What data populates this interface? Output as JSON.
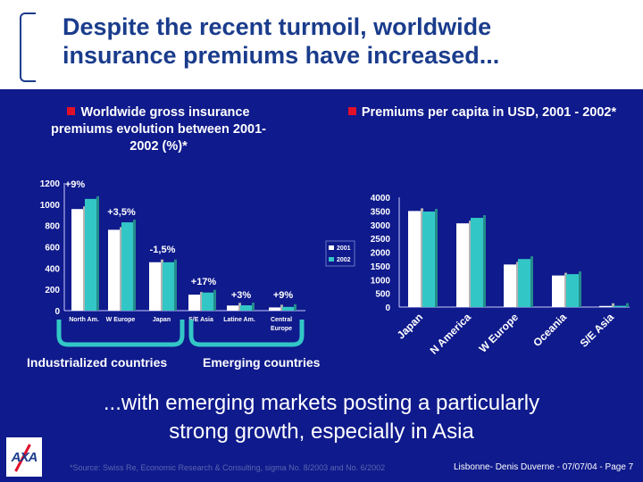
{
  "slide": {
    "title": "Despite the recent turmoil, worldwide\ninsurance premiums have increased...",
    "left_header": "Worldwide gross insurance premiums evolution between 2001- 2002 (%)*",
    "right_header": "Premiums per capita in USD, 2001 - 2002*",
    "group_industrialized": "Industrialized countries",
    "group_emerging": "Emerging countries",
    "tagline": "...with emerging markets posting a particularly\nstrong growth, especially in Asia",
    "footnote": "*Source: Swiss Re, Economic Research & Consulting, sigma No. 8/2003 and No. 6/2002",
    "page_info": "Lisbonne- Denis Duverne - 07/07/04 - Page 7",
    "logo_text": "AXA"
  },
  "colors": {
    "panel_bg": "#0f1a8c",
    "title": "#1a3c8c",
    "bar_2001": "#ffffff",
    "bar_2002": "#33c6c6",
    "bullet": "#e0102a"
  },
  "chart_data": [
    {
      "type": "bar",
      "categories": [
        "North Am.",
        "W Europe",
        "Japan",
        "S/E Asia",
        "Latine Am.",
        "Central Europe"
      ],
      "series": [
        {
          "name": "2001",
          "values": [
            955,
            760,
            455,
            150,
            48,
            30
          ]
        },
        {
          "name": "2002",
          "values": [
            1050,
            830,
            455,
            170,
            50,
            35
          ]
        }
      ],
      "annotations": [
        "+9%",
        "+3,5%",
        "-1,5%",
        "+17%",
        "+3%",
        "+9%"
      ],
      "ylim": [
        0,
        1200
      ],
      "yticks": [
        0,
        200,
        400,
        600,
        800,
        1000,
        1200
      ],
      "legend": [
        "2001",
        "2002"
      ],
      "legend_position": "right",
      "grid": false
    },
    {
      "type": "bar",
      "categories": [
        "Japan",
        "N America",
        "W Europe",
        "Oceania",
        "S/E Asia"
      ],
      "series": [
        {
          "name": "2001",
          "values": [
            3500,
            3050,
            1550,
            1150,
            40
          ]
        },
        {
          "name": "2002",
          "values": [
            3480,
            3250,
            1750,
            1200,
            45
          ]
        }
      ],
      "ylim": [
        0,
        4000
      ],
      "yticks": [
        0,
        500,
        1000,
        1500,
        2000,
        2500,
        3000,
        3500,
        4000
      ],
      "grid": false
    }
  ]
}
